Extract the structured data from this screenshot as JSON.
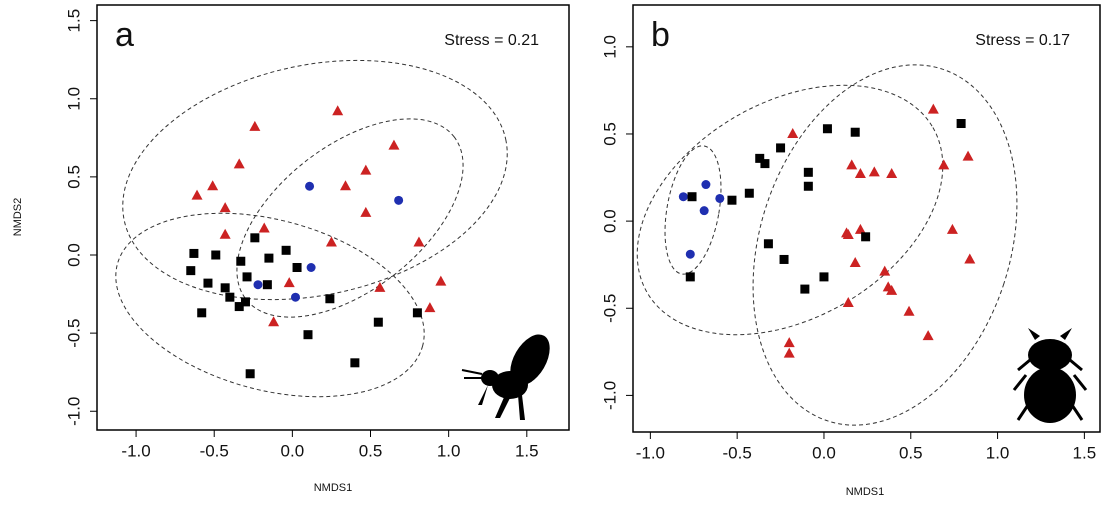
{
  "chart_data": [
    {
      "type": "scatter",
      "title": "a",
      "annotation": "Stress = 0.21",
      "xlabel": "NMDS1",
      "ylabel": "NMDS2",
      "xlim": [
        -1.25,
        1.77
      ],
      "ylim": [
        -1.12,
        1.6
      ],
      "xticks": [
        {
          "value": -1,
          "label": "-1.0"
        },
        -0.5,
        {
          "value": 0,
          "label": "0.0"
        },
        0.5,
        {
          "value": 1,
          "label": "1.0"
        },
        1.5
      ],
      "yticks": [
        {
          "value": -1,
          "label": "-1.0"
        },
        -0.5,
        {
          "value": 0,
          "label": "0.0"
        },
        0.5,
        {
          "value": 1,
          "label": "1.0"
        },
        1.5
      ],
      "series": [
        {
          "color": "#cc2222",
          "marker": "triangle",
          "x": [
            -0.24,
            0.29,
            -0.51,
            -0.34,
            -0.61,
            -0.43,
            0.65,
            0.34,
            0.47,
            -0.43,
            -0.18,
            0.47,
            0.25,
            -0.02,
            -0.12,
            0.56,
            0.81,
            0.95,
            0.88
          ],
          "values": [
            0.82,
            0.92,
            0.44,
            0.58,
            0.38,
            0.3,
            0.7,
            0.44,
            0.54,
            0.13,
            0.17,
            0.27,
            0.08,
            -0.18,
            -0.43,
            -0.21,
            0.08,
            -0.17,
            -0.34
          ]
        },
        {
          "color": "#1f2fb0",
          "marker": "circle",
          "x": [
            0.11,
            0.68,
            0.12,
            -0.22,
            0.02
          ],
          "values": [
            0.44,
            0.35,
            -0.08,
            -0.19,
            -0.27
          ]
        },
        {
          "color": "#000000",
          "marker": "square",
          "x": [
            -0.63,
            -0.65,
            -0.49,
            -0.54,
            -0.58,
            -0.43,
            -0.33,
            -0.24,
            -0.29,
            -0.15,
            -0.04,
            -0.16,
            -0.34,
            -0.3,
            -0.4,
            0.03,
            0.24,
            0.1,
            0.55,
            0.8,
            0.4,
            -0.27
          ],
          "values": [
            0.01,
            -0.1,
            0.0,
            -0.18,
            -0.37,
            -0.21,
            -0.04,
            0.11,
            -0.14,
            -0.02,
            0.03,
            -0.19,
            -0.33,
            -0.3,
            -0.27,
            -0.08,
            -0.28,
            -0.51,
            -0.43,
            -0.37,
            -0.69,
            -0.76
          ]
        }
      ]
    },
    {
      "type": "scatter",
      "title": "b",
      "annotation": "Stress = 0.17",
      "xlabel": "NMDS1",
      "xlim": [
        -1.1,
        1.59
      ],
      "ylim": [
        -1.21,
        1.24
      ],
      "xticks": [
        {
          "value": -1,
          "label": "-1.0"
        },
        -0.5,
        {
          "value": 0,
          "label": "0.0"
        },
        0.5,
        {
          "value": 1,
          "label": "1.0"
        },
        1.5
      ],
      "yticks": [
        {
          "value": -1,
          "label": "-1.0"
        },
        -0.5,
        {
          "value": 0,
          "label": "0.0"
        },
        0.5,
        {
          "value": 1,
          "label": "1.0"
        }
      ],
      "series": [
        {
          "color": "#cc2222",
          "marker": "triangle",
          "x": [
            -0.18,
            0.63,
            0.83,
            0.69,
            0.16,
            0.21,
            0.29,
            0.39,
            0.74,
            0.84,
            0.13,
            0.21,
            0.18,
            0.35,
            0.37,
            0.39,
            0.14,
            0.49,
            0.6,
            -0.2,
            -0.2,
            0.14
          ],
          "values": [
            0.5,
            0.64,
            0.37,
            0.32,
            0.32,
            0.27,
            0.28,
            0.27,
            -0.05,
            -0.22,
            -0.07,
            -0.05,
            -0.24,
            -0.29,
            -0.38,
            -0.4,
            -0.47,
            -0.52,
            -0.66,
            -0.7,
            -0.76,
            -0.08
          ]
        },
        {
          "color": "#1f2fb0",
          "marker": "circle",
          "x": [
            -0.81,
            -0.68,
            -0.6,
            -0.69,
            -0.77
          ],
          "values": [
            0.14,
            0.21,
            0.13,
            0.06,
            -0.19
          ]
        },
        {
          "color": "#000000",
          "marker": "square",
          "x": [
            -0.76,
            -0.77,
            -0.53,
            -0.43,
            -0.37,
            -0.34,
            -0.25,
            0.02,
            0.18,
            -0.09,
            -0.09,
            -0.32,
            -0.23,
            0.0,
            -0.11,
            0.24,
            0.79
          ],
          "values": [
            0.14,
            -0.32,
            0.12,
            0.16,
            0.36,
            0.33,
            0.42,
            0.53,
            0.51,
            0.28,
            0.2,
            -0.13,
            -0.22,
            -0.32,
            -0.39,
            -0.09,
            0.56
          ]
        }
      ]
    }
  ]
}
